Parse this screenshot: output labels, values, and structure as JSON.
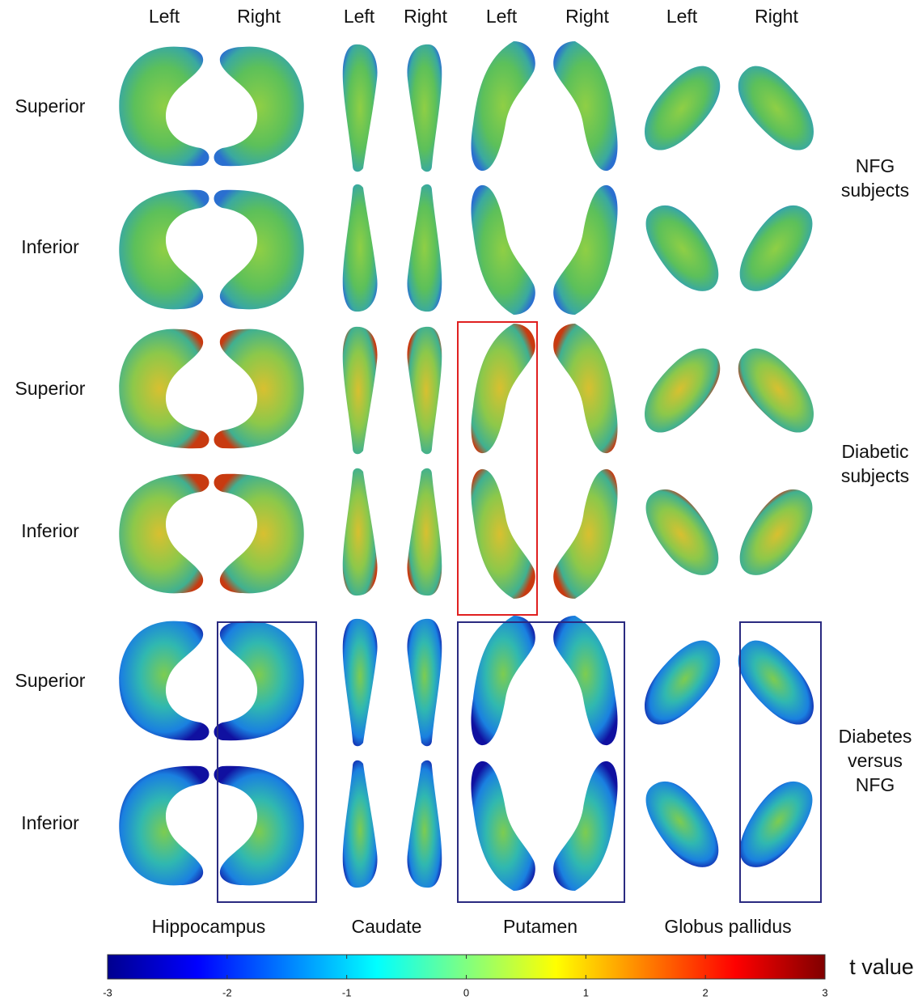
{
  "column_labels": [
    "Left",
    "Right",
    "Left",
    "Right",
    "Left",
    "Right",
    "Left",
    "Right"
  ],
  "row_labels": [
    "Superior",
    "Inferior",
    "Superior",
    "Inferior",
    "Superior",
    "Inferior"
  ],
  "groups": [
    {
      "lines": [
        "NFG",
        "subjects"
      ]
    },
    {
      "lines": [
        "Diabetic",
        "subjects"
      ]
    },
    {
      "lines": [
        "Diabetes",
        "versus",
        "NFG"
      ]
    }
  ],
  "structures": [
    "Hippocampus",
    "Caudate",
    "Putamen",
    "Globus pallidus"
  ],
  "colorbar": {
    "label": "t value",
    "range": [
      -3,
      3
    ],
    "ticks": [
      -3,
      -2,
      -1,
      0,
      1,
      2,
      3
    ]
  }
}
